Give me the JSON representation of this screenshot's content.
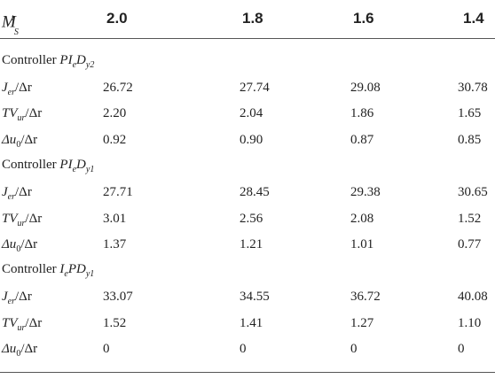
{
  "header": {
    "label": "M",
    "label_sup": "t",
    "label_sub": "S",
    "columns": [
      "2.0",
      "1.8",
      "1.6",
      "1.4"
    ]
  },
  "groups": [
    {
      "prefix": "Controller ",
      "name_a": "PI",
      "sub_a": "e",
      "name_b": "D",
      "sub_b": "y2",
      "rows": [
        {
          "label": "J",
          "sub": "er",
          "suffix": "/Δr",
          "values": [
            "26.72",
            "27.74",
            "29.08",
            "30.78"
          ]
        },
        {
          "label": "TV",
          "sub": "ur",
          "suffix": "/Δr",
          "values": [
            "2.20",
            "2.04",
            "1.86",
            "1.65"
          ]
        },
        {
          "label": "Δu",
          "sub": "0",
          "suffix": "/Δr",
          "values": [
            "0.92",
            "0.90",
            "0.87",
            "0.85"
          ]
        }
      ]
    },
    {
      "prefix": "Controller ",
      "name_a": "PI",
      "sub_a": "e",
      "name_b": "D",
      "sub_b": "y1",
      "rows": [
        {
          "label": "J",
          "sub": "er",
          "suffix": "/Δr",
          "values": [
            "27.71",
            "28.45",
            "29.38",
            "30.65"
          ]
        },
        {
          "label": "TV",
          "sub": "ur",
          "suffix": "/Δr",
          "values": [
            "3.01",
            "2.56",
            "2.08",
            "1.52"
          ]
        },
        {
          "label": "Δu",
          "sub": "0",
          "suffix": "/Δr",
          "values": [
            "1.37",
            "1.21",
            "1.01",
            "0.77"
          ]
        }
      ]
    },
    {
      "prefix": "Controller ",
      "name_a": "I",
      "sub_a": "e",
      "name_b": "PD",
      "sub_b": "y1",
      "rows": [
        {
          "label": "J",
          "sub": "er",
          "suffix": "/Δr",
          "values": [
            "33.07",
            "34.55",
            "36.72",
            "40.08"
          ]
        },
        {
          "label": "TV",
          "sub": "ur",
          "suffix": "/Δr",
          "values": [
            "1.52",
            "1.41",
            "1.27",
            "1.10"
          ]
        },
        {
          "label": "Δu",
          "sub": "0",
          "suffix": "/Δr",
          "values": [
            "0",
            "0",
            "0",
            "0"
          ]
        }
      ]
    }
  ]
}
